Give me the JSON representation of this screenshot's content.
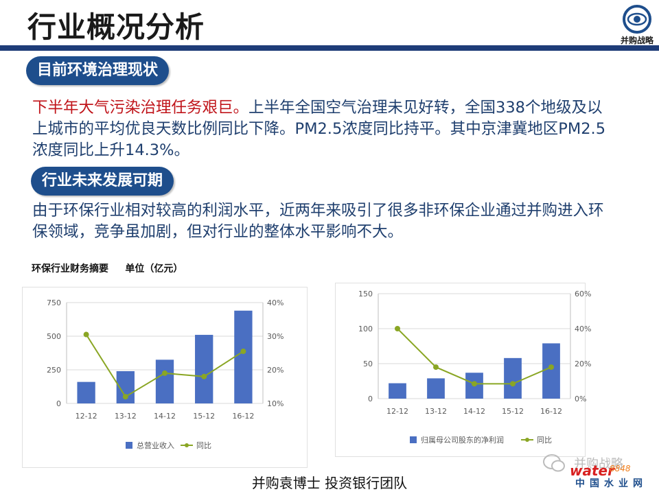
{
  "page": {
    "title": "行业概况分析",
    "logo_text": "并购战略",
    "section1": {
      "heading": "目前环境治理现状",
      "highlight": "下半年大气污染治理任务艰巨。",
      "body": "上半年全国空气治理未见好转，全国338个地级及以上城市的平均优良天数比例同比下降。PM2.5浓度同比持平。其中京津冀地区PM2.5 浓度同比上升14.3%。"
    },
    "section2": {
      "heading": "行业未来发展可期",
      "body": "由于环保行业相对较高的利润水平，近两年来吸引了很多非环保企业通过并购进入环保领域，竞争虽加剧，但对行业的整体水平影响不大。"
    },
    "financial_title": "环保行业财务摘要     单位（亿元）",
    "footer": "并购袁博士 投资银行团队",
    "watermark": {
      "wechat": "并购战略",
      "water": "water",
      "water_num": "8848",
      "site_cn": "中国水业网"
    },
    "colors": {
      "title_bar": "#1e3c78",
      "pill": "#1e4e8c",
      "body_text": "#1f3f6e",
      "highlight": "#c0141a",
      "bar": "#4a6fc2",
      "line": "#8aa624"
    }
  },
  "chart_data": [
    {
      "type": "bar",
      "categories": [
        "12-12",
        "13-12",
        "14-12",
        "15-12",
        "16-12"
      ],
      "series": [
        {
          "name": "总营业收入",
          "type": "bar",
          "axis": "left",
          "values": [
            160,
            240,
            325,
            510,
            690
          ]
        },
        {
          "name": "同比",
          "type": "line",
          "axis": "right",
          "values": [
            30.5,
            12.0,
            19.0,
            18.0,
            25.5
          ]
        }
      ],
      "y_left": {
        "min": 0,
        "max": 750,
        "ticks": [
          "0",
          "250",
          "500",
          "750"
        ]
      },
      "y_right": {
        "min": 10,
        "max": 40,
        "ticks": [
          "10%",
          "20%",
          "30%",
          "40%"
        ]
      },
      "grid": true,
      "legend": "bottom"
    },
    {
      "type": "bar",
      "categories": [
        "12-12",
        "13-12",
        "14-12",
        "15-12",
        "16-12"
      ],
      "series": [
        {
          "name": "归属母公司股东的净利润",
          "type": "bar",
          "axis": "left",
          "values": [
            22,
            29,
            37,
            58,
            79
          ]
        },
        {
          "name": "同比",
          "type": "line",
          "axis": "right",
          "values": [
            40,
            18,
            8.5,
            8.5,
            18
          ]
        }
      ],
      "y_left": {
        "min": 0,
        "max": 150,
        "ticks": [
          "0",
          "50",
          "100",
          "150"
        ]
      },
      "y_right": {
        "min": 0,
        "max": 60,
        "ticks": [
          "0%",
          "20%",
          "40%",
          "60%"
        ]
      },
      "grid": true,
      "legend": "bottom"
    }
  ]
}
